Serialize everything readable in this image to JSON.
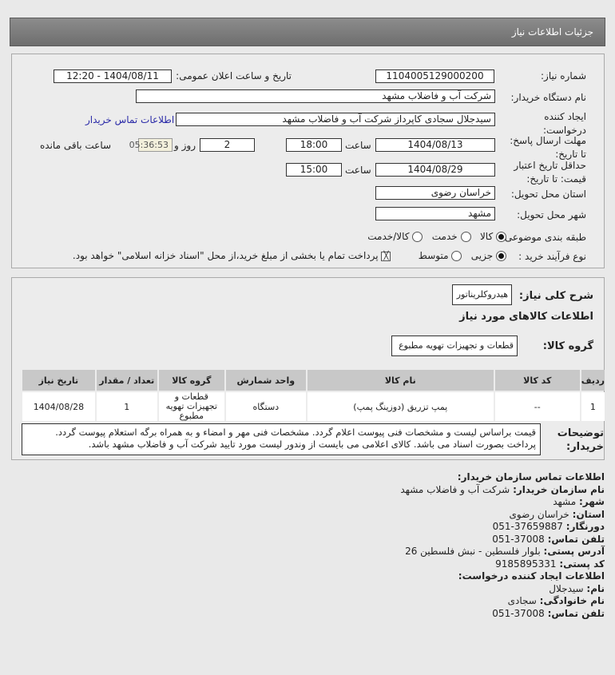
{
  "header": {
    "title": "جزئیات اطلاعات نیاز"
  },
  "form": {
    "need_number_label": "شماره نیاز:",
    "need_number": "1104005129000200",
    "announce_label": "تاریخ و ساعت اعلان عمومی:",
    "announce_value": "1404/08/11 - 12:20",
    "buyer_label": "نام دستگاه خریدار:",
    "buyer_value": "شرکت آب و فاضلاب مشهد",
    "creator_label": "ایجاد کننده درخواست:",
    "creator_value": "سیدجلال سجادی کاپرداز شرکت آب و فاضلاب مشهد",
    "contact_link": "اطلاعات تماس خریدار",
    "deadline_label": "مهلت ارسال پاسخ: تا تاریخ:",
    "deadline_date": "1404/08/13",
    "time_label": "ساعت",
    "deadline_time": "18:00",
    "days": "2",
    "days_label": "روز و",
    "remaining": "05:36:53",
    "remaining_label": "ساعت باقی مانده",
    "validity_label": "حداقل تاریخ اعتبار قیمت: تا تاریخ:",
    "validity_date": "1404/08/29",
    "validity_time": "15:00",
    "province_label": "استان محل تحویل:",
    "province": "خراسان رضوی",
    "city_label": "شهر محل تحویل:",
    "city": "مشهد",
    "category_label": "طبقه بندی موضوعی:",
    "category_options": [
      "کالا",
      "خدمت",
      "کالا/خدمت"
    ],
    "category_selected": 0,
    "process_label": "نوع فرآیند خرید :",
    "process_options": [
      "جزیی",
      "متوسط"
    ],
    "process_selected": 0,
    "payment_note": "پرداخت تمام یا بخشی از مبلغ خرید،از محل \"اسناد خزانه اسلامی\" خواهد بود."
  },
  "details": {
    "summary_label": "شرح کلی نیاز:",
    "summary": "هیدروکلریناتور",
    "goods_title": "اطلاعات کالاهای مورد نیاز",
    "group_label": "گروه کالا:",
    "group": "قطعات و تجهیزات تهویه مطبوع",
    "table": {
      "headers": [
        "ردیف",
        "کد کالا",
        "نام کالا",
        "واحد شمارش",
        "گروه کالا",
        "تعداد / مقدار",
        "تاریخ نیاز"
      ],
      "rows": [
        [
          "1",
          "--",
          "پمپ تزریق (دوزینگ پمپ)",
          "دستگاه",
          "قطعات و تجهیزات تهویه مطبوع",
          "1",
          "1404/08/28"
        ]
      ]
    },
    "notes_label": "توضیحات خریدار:",
    "notes": "قیمت براساس لیست و مشخصات فنی پیوست اعلام گردد. مشخصات فنی مهر و امضاء و به همراه برگه استعلام پیوست گردد. پرداخت بصورت اسناد می باشد. کالای اعلامی می بایست از وندور لیست مورد تایید شرکت آب و فاضلاب مشهد باشد."
  },
  "contact": {
    "title": "اطلاعات تماس سازمان خریدار:",
    "org_label": "نام سازمان خریدار:",
    "org": "شرکت آب و فاضلاب مشهد",
    "city_label": "شهر:",
    "city": "مشهد",
    "province_label": "استان:",
    "province": "خراسان رضوی",
    "fax_label": "دورنگار:",
    "fax": "37659887-051",
    "phone_label": "تلفن تماس:",
    "phone": "37008-051",
    "address_label": "آدرس پستی:",
    "address": "بلوار فلسطین - نبش فلسطین 26",
    "postal_label": "کد پستی:",
    "postal": "9185895331",
    "creator_title": "اطلاعات ایجاد کننده درخواست:",
    "name_label": "نام:",
    "name": "سیدجلال",
    "family_label": "نام خانوادگی:",
    "family": "سجادی",
    "cphone_label": "تلفن تماس:",
    "cphone": "37008-051"
  }
}
